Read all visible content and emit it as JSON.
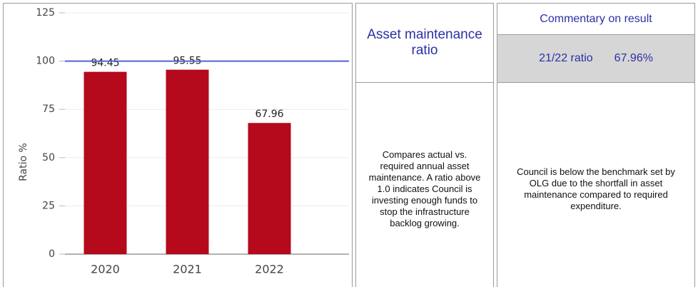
{
  "chart_data": {
    "type": "bar",
    "y_label": "Ratio %",
    "categories": [
      "2020",
      "2021",
      "2022"
    ],
    "values": [
      94.45,
      95.55,
      67.96
    ],
    "color": "#b5091c",
    "ylim": [
      0,
      125
    ],
    "yticks": [
      0,
      25,
      50,
      75,
      100,
      125
    ],
    "grid": true,
    "reference_line": {
      "value": 100,
      "color": "#5061d6"
    }
  },
  "table": {
    "title": "Asset maintenance ratio",
    "description": "Compares actual vs. required annual asset maintenance. A ratio above 1.0 indicates Council is investing enough funds to stop the infrastructure backlog growing.",
    "commentary_header": "Commentary on result",
    "ratio_label": "21/22 ratio",
    "ratio_value": "67.96%",
    "commentary": "Council is below the benchmark set by OLG due to the shortfall in asset maintenance compared to required expenditure."
  }
}
